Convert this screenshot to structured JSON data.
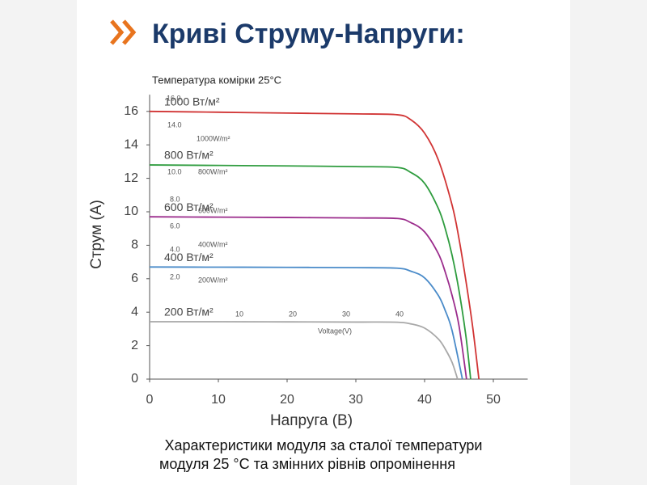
{
  "chart_data": {
    "type": "line",
    "title": "Криві Струму-Напруги:",
    "subtitle": "Температура комірки  25°C",
    "x_label": "Напруга (В)",
    "y_label": "Струм (А)",
    "caption": [
      "Характеристики модуля за сталої температури",
      "модуля 25 °C та змінних рівнів опромінення"
    ],
    "background_labels": [
      "16.0",
      "14.0",
      "1000W/m²",
      "10.0",
      "800W/m²",
      "8.0",
      "600W/m²",
      "6.0",
      "4.0",
      "400W/m²",
      "2.0",
      "200W/m²",
      "10",
      "20",
      "30",
      "40",
      "Voltage(V)"
    ],
    "xlim": [
      0,
      55
    ],
    "ylim": [
      0,
      17
    ],
    "xticks": [
      0,
      10,
      20,
      30,
      40,
      50
    ],
    "yticks": [
      0,
      2,
      4,
      6,
      8,
      10,
      12,
      14,
      16
    ],
    "series": [
      {
        "name": "1000 Вт/м²",
        "color": "#d13434",
        "x": [
          0,
          10,
          20,
          30,
          36,
          38,
          40,
          42,
          44,
          45,
          46,
          47,
          47.9
        ],
        "values": [
          16.0,
          15.95,
          15.9,
          15.85,
          15.8,
          15.5,
          14.7,
          13.1,
          10.4,
          8.4,
          5.9,
          3.1,
          0
        ]
      },
      {
        "name": "800 Вт/м²",
        "color": "#2e9c3e",
        "x": [
          0,
          10,
          20,
          30,
          36,
          38,
          40,
          42,
          43,
          44,
          45,
          46,
          46.7
        ],
        "values": [
          12.8,
          12.77,
          12.74,
          12.7,
          12.65,
          12.35,
          11.7,
          10.2,
          9.0,
          7.4,
          5.3,
          2.6,
          0
        ]
      },
      {
        "name": "600 Вт/м²",
        "color": "#9b2c8c",
        "x": [
          0,
          10,
          20,
          30,
          36,
          38,
          40,
          42,
          43,
          44,
          45,
          46.1
        ],
        "values": [
          9.7,
          9.68,
          9.66,
          9.63,
          9.6,
          9.35,
          8.8,
          7.5,
          6.4,
          5.0,
          3.2,
          0
        ]
      },
      {
        "name": "400 Вт/м²",
        "color": "#4a8bc9",
        "x": [
          0,
          10,
          20,
          30,
          36,
          38,
          40,
          42,
          43,
          44,
          45.5
        ],
        "values": [
          6.7,
          6.69,
          6.68,
          6.66,
          6.63,
          6.45,
          6.05,
          5.0,
          4.1,
          2.9,
          0
        ]
      },
      {
        "name": "200 Вт/м²",
        "color": "#a8a8a8",
        "x": [
          0,
          10,
          20,
          30,
          36,
          38,
          40,
          42,
          43,
          44,
          44.8
        ],
        "values": [
          3.43,
          3.43,
          3.42,
          3.41,
          3.4,
          3.3,
          3.05,
          2.4,
          1.8,
          1.0,
          0
        ]
      }
    ]
  }
}
